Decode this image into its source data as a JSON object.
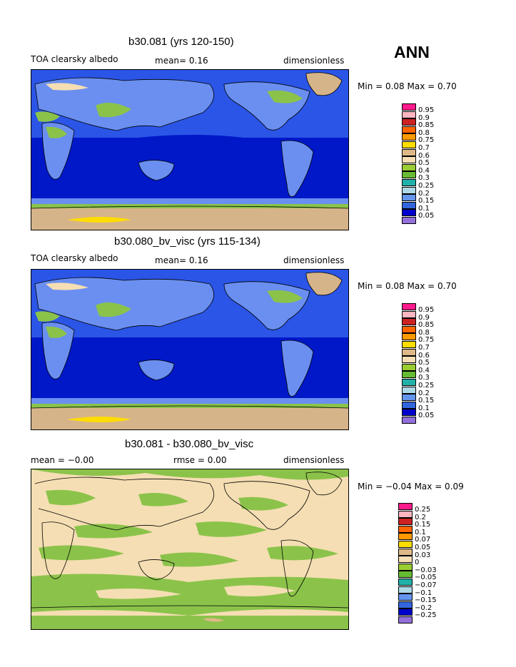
{
  "season": "ANN",
  "panels": [
    {
      "title": "b30.081 (yrs 120-150)",
      "left": "TOA clearsky albedo",
      "middle": "mean=   0.16",
      "right": "dimensionless",
      "minmax": "Min =    0.08  Max =     0.70",
      "legend": [
        "0.95",
        "0.9",
        "0.85",
        "0.8",
        "0.75",
        "0.7",
        "0.6",
        "0.5",
        "0.4",
        "0.3",
        "0.25",
        "0.2",
        "0.15",
        "0.1",
        "0.05"
      ]
    },
    {
      "title": "b30.080_bv_visc (yrs 115-134)",
      "left": "TOA clearsky albedo",
      "middle": "mean=   0.16",
      "right": "dimensionless",
      "minmax": "Min =    0.08  Max =     0.70",
      "legend": [
        "0.95",
        "0.9",
        "0.85",
        "0.8",
        "0.75",
        "0.7",
        "0.6",
        "0.5",
        "0.4",
        "0.3",
        "0.25",
        "0.2",
        "0.15",
        "0.1",
        "0.05"
      ]
    },
    {
      "title": "b30.081 - b30.080_bv_visc",
      "left": "mean =   −0.00",
      "middle": "rmse =    0.00",
      "right": "dimensionless",
      "minmax": "Min =   −0.04  Max =     0.09",
      "legend": [
        "0.25",
        "0.2",
        "0.15",
        "0.1",
        "0.07",
        "0.05",
        "0.03",
        "0",
        "−0.03",
        "−0.05",
        "−0.07",
        "−0.1",
        "−0.15",
        "−0.2",
        "−0.25"
      ]
    }
  ],
  "legend_colors": [
    "#ff1a8c",
    "#ffb6c1",
    "#cc2222",
    "#ff6600",
    "#ff9900",
    "#ffdd00",
    "#deb887",
    "#f5deb3",
    "#9acd32",
    "#66bb33",
    "#20b2aa",
    "#add8e6",
    "#6495ed",
    "#3366dd",
    "#0000cd",
    "#9370db"
  ],
  "map_colors": {
    "ocean_deep": "#0018c8",
    "ocean_mid": "#2b55e6",
    "ocean_light": "#6a8ff0",
    "ice": "#d6b48a",
    "green": "#8bc34a",
    "diff_base": "#f5deb3",
    "diff_green": "#8bc34a"
  }
}
